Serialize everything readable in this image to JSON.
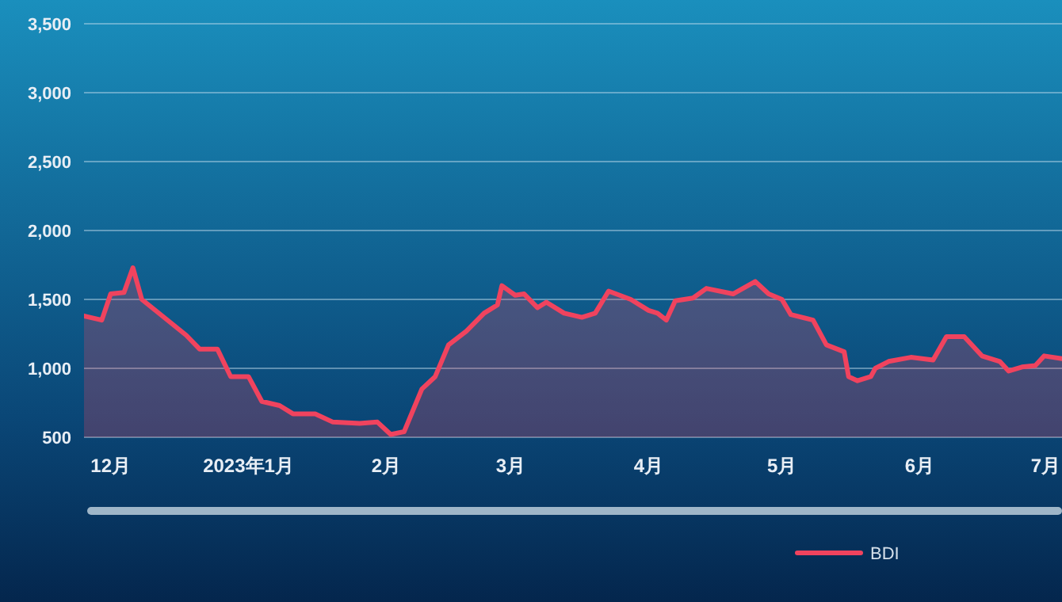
{
  "chart_data": {
    "type": "area",
    "x": [
      "2022-11-25",
      "2022-11-29",
      "2022-12-01",
      "2022-12-04",
      "2022-12-06",
      "2022-12-08",
      "2022-12-18",
      "2022-12-21",
      "2022-12-25",
      "2022-12-28",
      "2023-01-01",
      "2023-01-04",
      "2023-01-08",
      "2023-01-11",
      "2023-01-16",
      "2023-01-20",
      "2023-01-26",
      "2023-01-30",
      "2023-02-02",
      "2023-02-05",
      "2023-02-09",
      "2023-02-12",
      "2023-02-15",
      "2023-02-19",
      "2023-02-23",
      "2023-02-26",
      "2023-02-27",
      "2023-03-02",
      "2023-03-04",
      "2023-03-07",
      "2023-03-09",
      "2023-03-13",
      "2023-03-17",
      "2023-03-20",
      "2023-03-23",
      "2023-03-28",
      "2023-04-01",
      "2023-04-03",
      "2023-04-05",
      "2023-04-07",
      "2023-04-11",
      "2023-04-14",
      "2023-04-20",
      "2023-04-25",
      "2023-04-28",
      "2023-05-01",
      "2023-05-03",
      "2023-05-08",
      "2023-05-11",
      "2023-05-15",
      "2023-05-16",
      "2023-05-18",
      "2023-05-21",
      "2023-05-22",
      "2023-05-25",
      "2023-05-30",
      "2023-06-04",
      "2023-06-07",
      "2023-06-11",
      "2023-06-15",
      "2023-06-19",
      "2023-06-21",
      "2023-06-24",
      "2023-06-27",
      "2023-06-29",
      "2023-07-03"
    ],
    "series": [
      {
        "name": "BDI",
        "color": "#f0435e",
        "values": [
          1380,
          1350,
          1540,
          1550,
          1730,
          1500,
          1240,
          1140,
          1140,
          940,
          940,
          760,
          730,
          670,
          670,
          610,
          600,
          610,
          520,
          540,
          850,
          940,
          1170,
          1270,
          1400,
          1460,
          1600,
          1530,
          1540,
          1440,
          1480,
          1400,
          1370,
          1400,
          1560,
          1500,
          1420,
          1400,
          1350,
          1490,
          1510,
          1580,
          1540,
          1630,
          1540,
          1500,
          1390,
          1350,
          1170,
          1120,
          940,
          910,
          940,
          1000,
          1050,
          1080,
          1060,
          1230,
          1230,
          1090,
          1050,
          980,
          1010,
          1020,
          1090,
          1070
        ]
      }
    ],
    "xlim": [
      "2022-11-25",
      "2023-07-03"
    ],
    "xticks": [
      {
        "value": "2022-12-01",
        "label": "12月"
      },
      {
        "value": "2023-01-01",
        "label": "2023年1月"
      },
      {
        "value": "2023-02-01",
        "label": "2月"
      },
      {
        "value": "2023-03-01",
        "label": "3月"
      },
      {
        "value": "2023-04-01",
        "label": "4月"
      },
      {
        "value": "2023-05-01",
        "label": "5月"
      },
      {
        "value": "2023-06-01",
        "label": "6月"
      },
      {
        "value": "2023-07-01",
        "label": "7月"
      }
    ],
    "ylim": [
      500,
      3500
    ],
    "yticks": [
      {
        "value": 500,
        "label": "500"
      },
      {
        "value": 1000,
        "label": "1,000"
      },
      {
        "value": 1500,
        "label": "1,500"
      },
      {
        "value": 2000,
        "label": "2,000"
      },
      {
        "value": 2500,
        "label": "2,500"
      },
      {
        "value": 3000,
        "label": "3,000"
      },
      {
        "value": 3500,
        "label": "3,500"
      }
    ],
    "grid": "y",
    "legend": "bottom"
  }
}
